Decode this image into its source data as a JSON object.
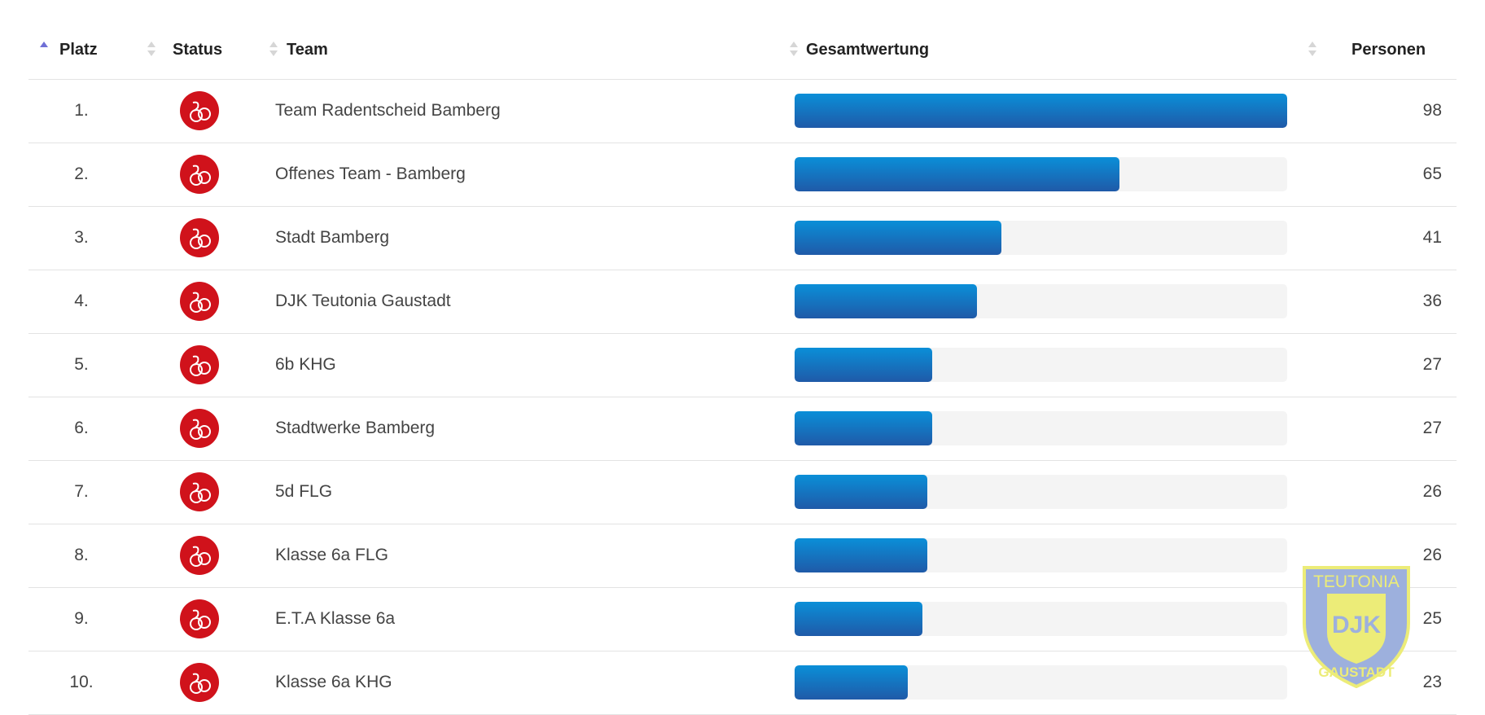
{
  "header": {
    "platz": "Platz",
    "status": "Status",
    "team": "Team",
    "gesamtwertung": "Gesamtwertung",
    "personen": "Personen"
  },
  "colors": {
    "bar": "#1f6fc0",
    "track": "#f4f4f4",
    "status": "#d0121b",
    "sort_active": "#6f6fd6"
  },
  "rows": [
    {
      "rank": "1.",
      "team": "Team Radentscheid Bamberg",
      "score_fraction": 1.0,
      "persons": "98",
      "icon": "bicycle-icon"
    },
    {
      "rank": "2.",
      "team": "Offenes Team - Bamberg",
      "score_fraction": 0.66,
      "persons": "65",
      "icon": "bicycle-icon"
    },
    {
      "rank": "3.",
      "team": "Stadt Bamberg",
      "score_fraction": 0.42,
      "persons": "41",
      "icon": "bicycle-icon"
    },
    {
      "rank": "4.",
      "team": "DJK Teutonia Gaustadt",
      "score_fraction": 0.37,
      "persons": "36",
      "icon": "bicycle-icon"
    },
    {
      "rank": "5.",
      "team": "6b KHG",
      "score_fraction": 0.28,
      "persons": "27",
      "icon": "bicycle-icon"
    },
    {
      "rank": "6.",
      "team": "Stadtwerke Bamberg",
      "score_fraction": 0.28,
      "persons": "27",
      "icon": "bicycle-icon"
    },
    {
      "rank": "7.",
      "team": "5d FLG",
      "score_fraction": 0.27,
      "persons": "26",
      "icon": "bicycle-icon"
    },
    {
      "rank": "8.",
      "team": "Klasse 6a FLG",
      "score_fraction": 0.27,
      "persons": "26",
      "icon": "bicycle-icon"
    },
    {
      "rank": "9.",
      "team": "E.T.A Klasse 6a",
      "score_fraction": 0.26,
      "persons": "25",
      "icon": "bicycle-icon"
    },
    {
      "rank": "10.",
      "team": "Klasse 6a KHG",
      "score_fraction": 0.23,
      "persons": "23",
      "icon": "bicycle-icon"
    }
  ],
  "logo": {
    "top": "TEUTONIA",
    "center": "DJK",
    "bottom": "GAUSTADT"
  }
}
